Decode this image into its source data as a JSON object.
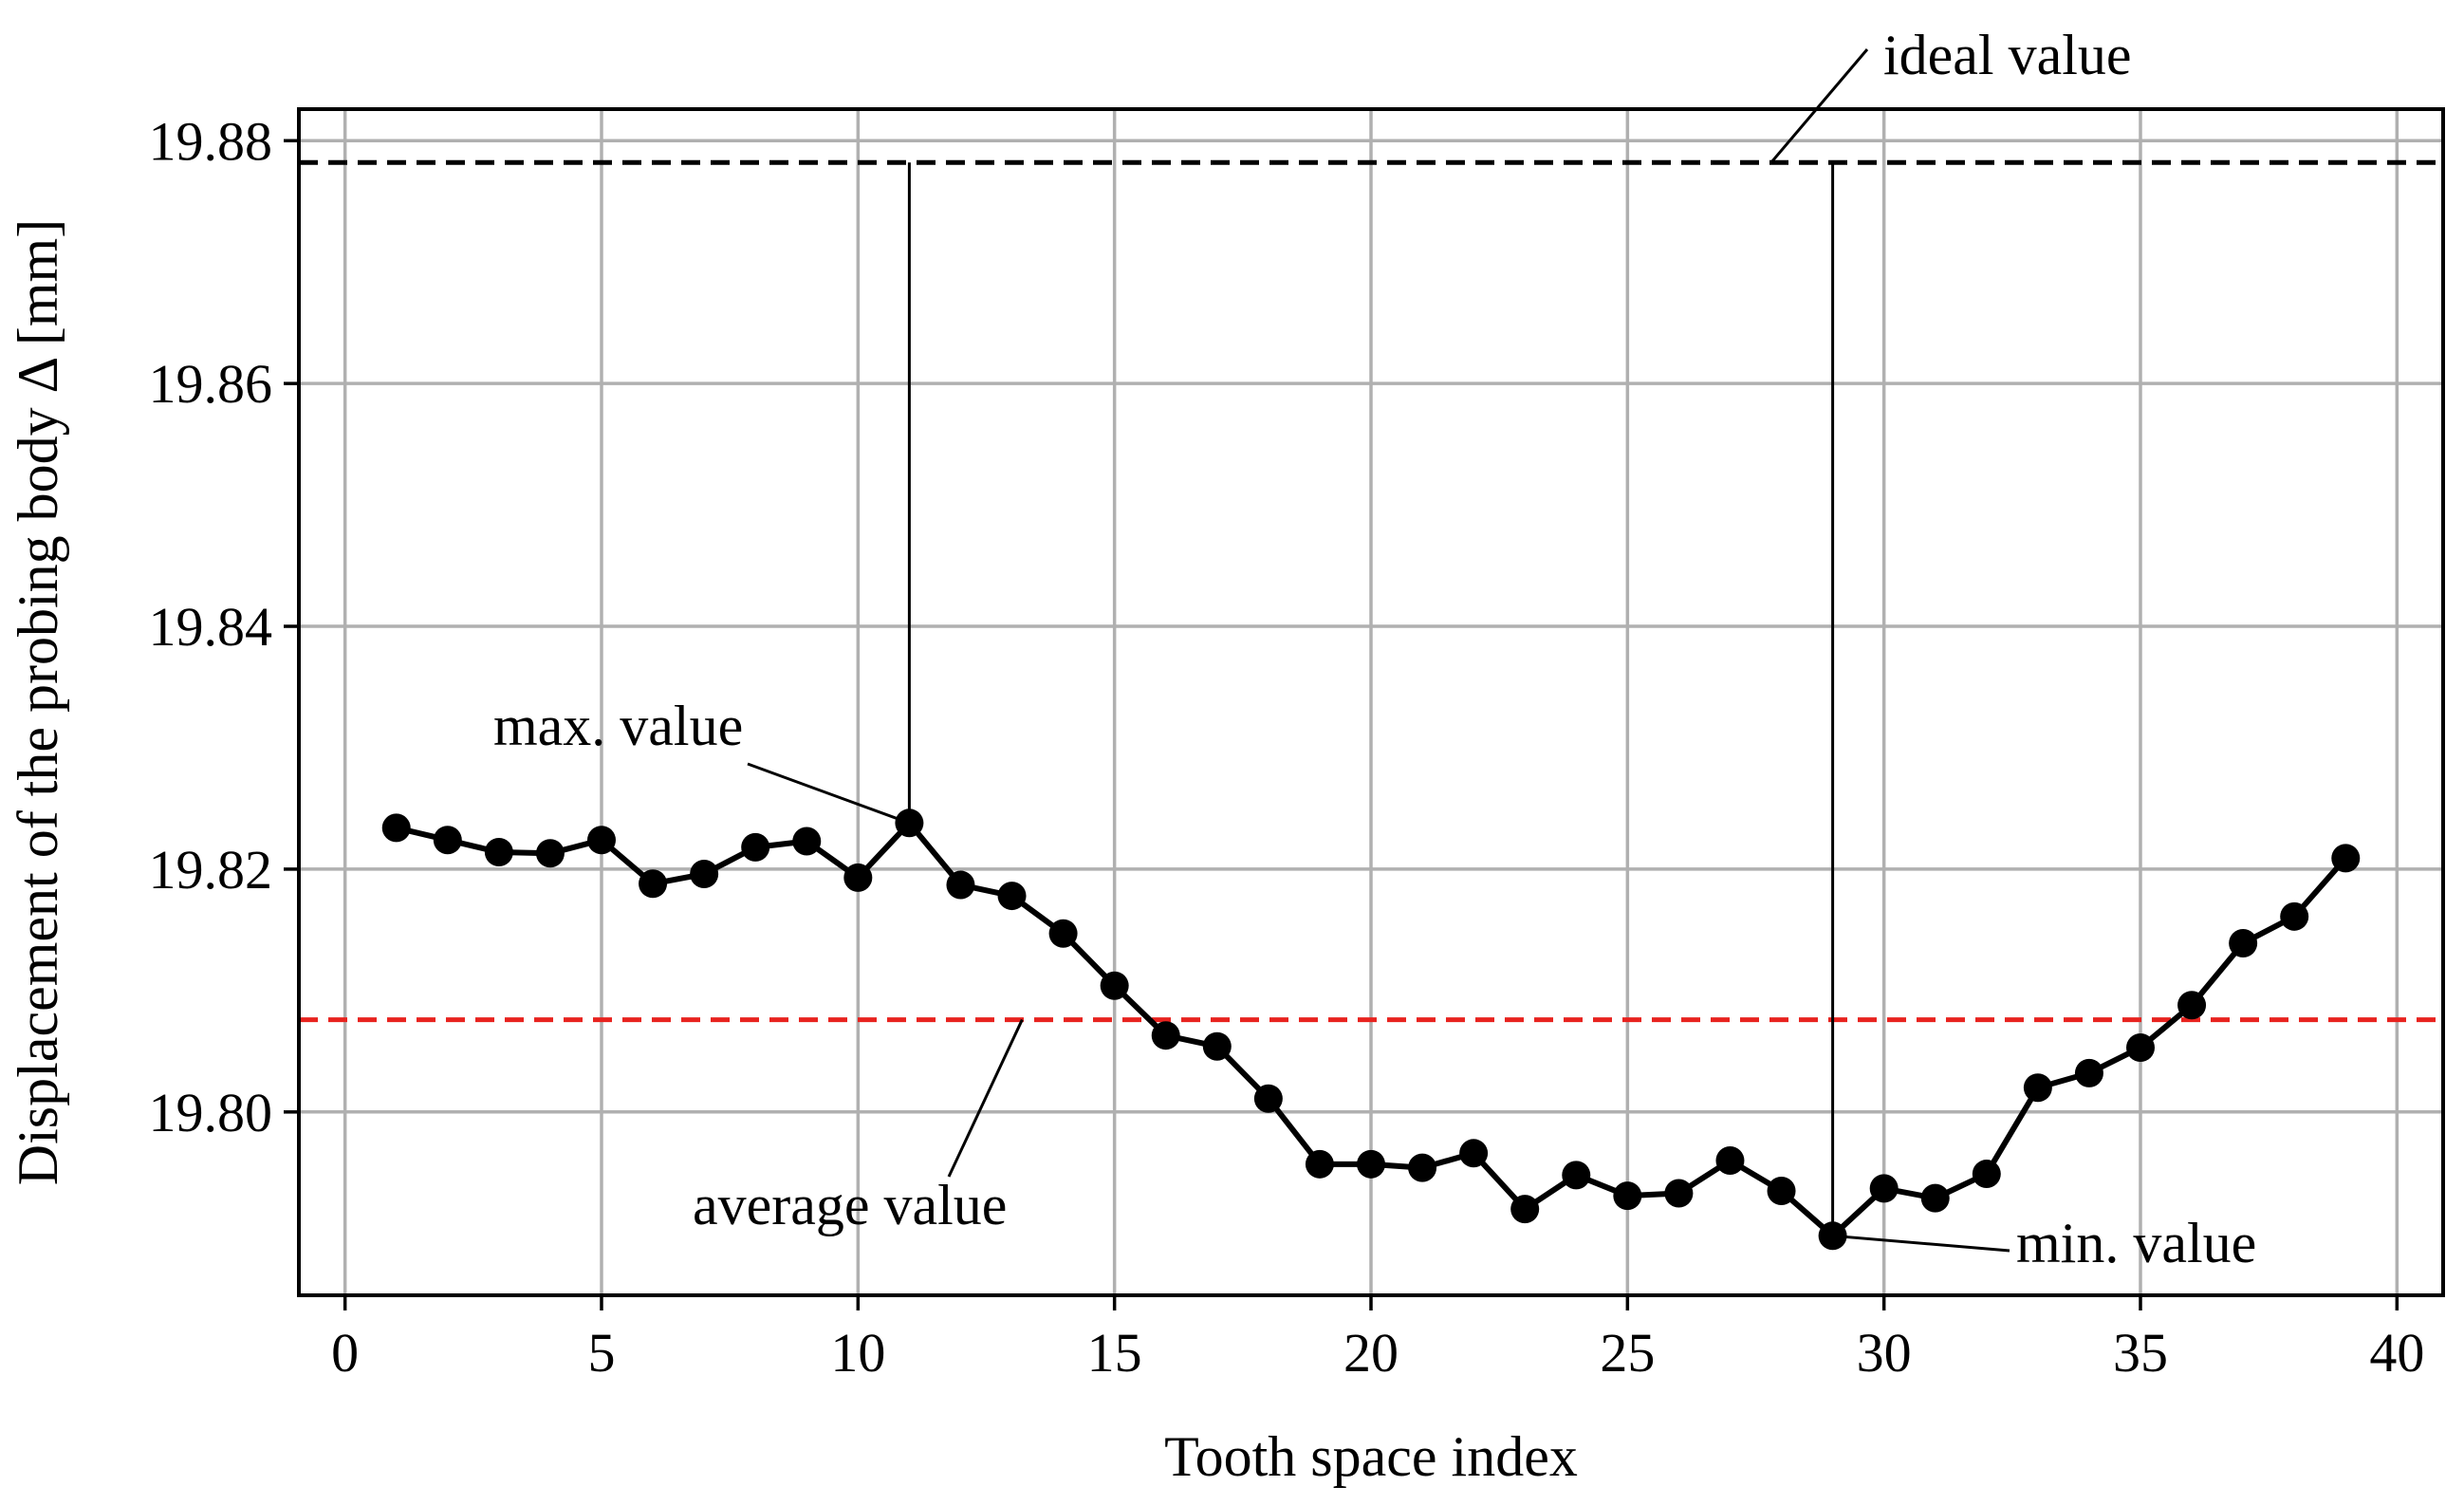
{
  "chart_data": {
    "type": "line",
    "title": "",
    "xlabel": "Tooth space index",
    "ylabel": "Displacement of the probing body Δ [mm]",
    "xlim": [
      -0.9,
      40.9
    ],
    "ylim": [
      19.7849,
      19.8826
    ],
    "xticks": [
      0,
      5,
      10,
      15,
      20,
      25,
      30,
      35,
      40
    ],
    "xtick_labels": [
      "0",
      "5",
      "10",
      "15",
      "20",
      "25",
      "30",
      "35",
      "40"
    ],
    "yticks": [
      19.8,
      19.82,
      19.84,
      19.86,
      19.88
    ],
    "ytick_labels": [
      "19.80",
      "19.82",
      "19.84",
      "19.86",
      "19.88"
    ],
    "grid": true,
    "series": [
      {
        "name": "displacement",
        "color": "#000000",
        "marker": "circle",
        "x": [
          1,
          2,
          3,
          4,
          5,
          6,
          7,
          8,
          9,
          10,
          11,
          12,
          13,
          14,
          15,
          16,
          17,
          18,
          19,
          20,
          21,
          22,
          23,
          24,
          25,
          26,
          27,
          28,
          29,
          30,
          31,
          32,
          33,
          34,
          35,
          36,
          37,
          38,
          39
        ],
        "y": [
          19.8234,
          19.8224,
          19.8214,
          19.8213,
          19.8224,
          19.8188,
          19.8196,
          19.8218,
          19.8223,
          19.8193,
          19.8238,
          19.8187,
          19.8178,
          19.8147,
          19.8104,
          19.8063,
          19.8054,
          19.8011,
          19.7957,
          19.7957,
          19.7954,
          19.7966,
          19.792,
          19.7948,
          19.7931,
          19.7933,
          19.796,
          19.7935,
          19.7898,
          19.7937,
          19.7929,
          19.7949,
          19.802,
          19.8032,
          19.8053,
          19.8088,
          19.8139,
          19.8161,
          19.8209
        ]
      }
    ],
    "reference_lines": [
      {
        "name": "ideal value",
        "y": 19.8782,
        "color": "#000000",
        "style": "dashed"
      },
      {
        "name": "average value",
        "y": 19.8076,
        "color": "#e8231f",
        "style": "dashed"
      }
    ],
    "drop_lines": [
      {
        "x": 11,
        "y_from": 19.8238,
        "y_to": 19.8782
      },
      {
        "x": 29,
        "y_from": 19.7898,
        "y_to": 19.8782
      }
    ],
    "annotations": [
      {
        "text": "ideal value",
        "target_x": 27.8,
        "target_y": 19.8782
      },
      {
        "text": "max. value",
        "target_x": 11,
        "target_y": 19.8238
      },
      {
        "text": "average value",
        "target_x": 13.2,
        "target_y": 19.8076
      },
      {
        "text": "min. value",
        "target_x": 29,
        "target_y": 19.7898
      }
    ]
  }
}
